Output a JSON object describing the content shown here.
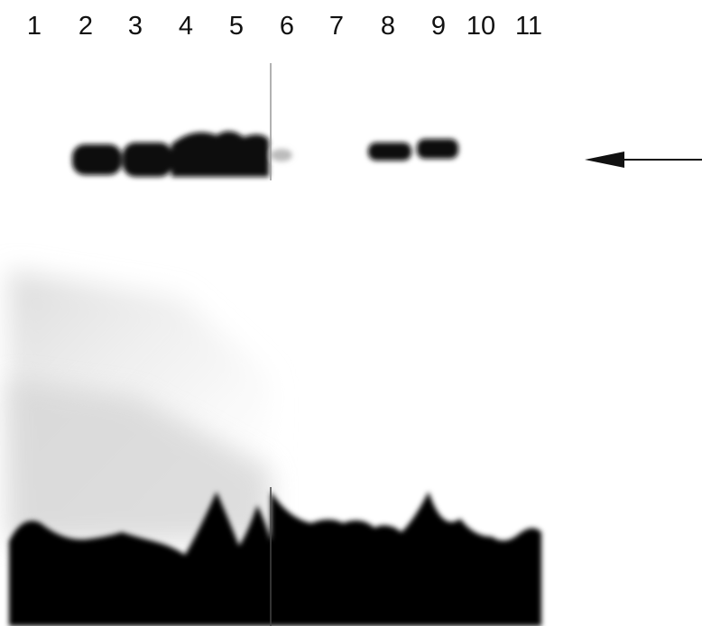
{
  "lane_labels": [
    "1",
    "2",
    "3",
    "4",
    "5",
    "6",
    "7",
    "8",
    "9",
    "10",
    "11"
  ]
}
